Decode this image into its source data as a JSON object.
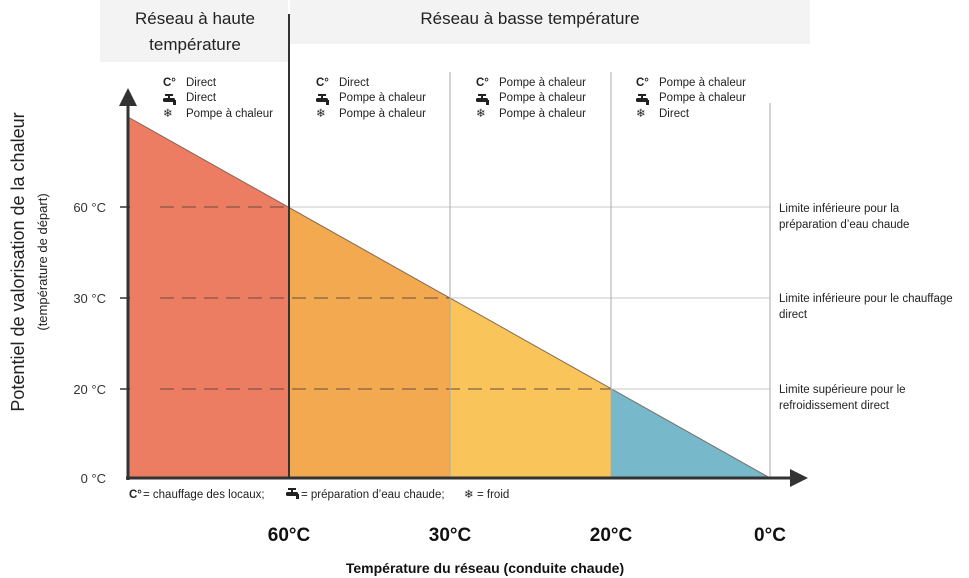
{
  "headers": {
    "high": [
      "Réseau à haute",
      "température"
    ],
    "low": "Réseau à basse température"
  },
  "y_axis": {
    "title": "Potentiel de valorisation de la chaleur",
    "subtitle": "(température de départ)",
    "ticks": [
      "60 °C",
      "30 °C",
      "20 °C",
      "0 °C"
    ]
  },
  "x_axis": {
    "title": "Température du réseau (conduite chaude)",
    "ticks": [
      "60°C",
      "30°C",
      "20°C",
      "0°C"
    ]
  },
  "columns": [
    {
      "heating": "Direct",
      "hot_water": "Direct",
      "cooling": "Pompe à chaleur"
    },
    {
      "heating": "Direct",
      "hot_water": "Pompe à chaleur",
      "cooling": "Pompe à chaleur"
    },
    {
      "heating": "Pompe à chaleur",
      "hot_water": "Pompe à chaleur",
      "cooling": "Pompe à chaleur"
    },
    {
      "heating": "Pompe à chaleur",
      "hot_water": "Pompe à chaleur",
      "cooling": "Direct"
    }
  ],
  "limits": [
    [
      "Limite inférieure pour la",
      "préparation d’eau chaude"
    ],
    [
      "Limite inférieure pour le chauffage",
      "direct"
    ],
    [
      "Limite supérieure pour le",
      "refroidissement direct"
    ]
  ],
  "legend": {
    "heating_symbol": "C°",
    "heating": "= chauffage des locaux;",
    "hot_water": "= préparation d’eau chaude;",
    "cooling_symbol": "❄",
    "cooling": "= froid"
  },
  "colors": {
    "zone1": "#ec7c62",
    "zone2": "#f2a950",
    "zone3": "#f9c55b",
    "zone4": "#78b8cb",
    "axis": "#333333",
    "grid": "#c8c8c8"
  }
}
